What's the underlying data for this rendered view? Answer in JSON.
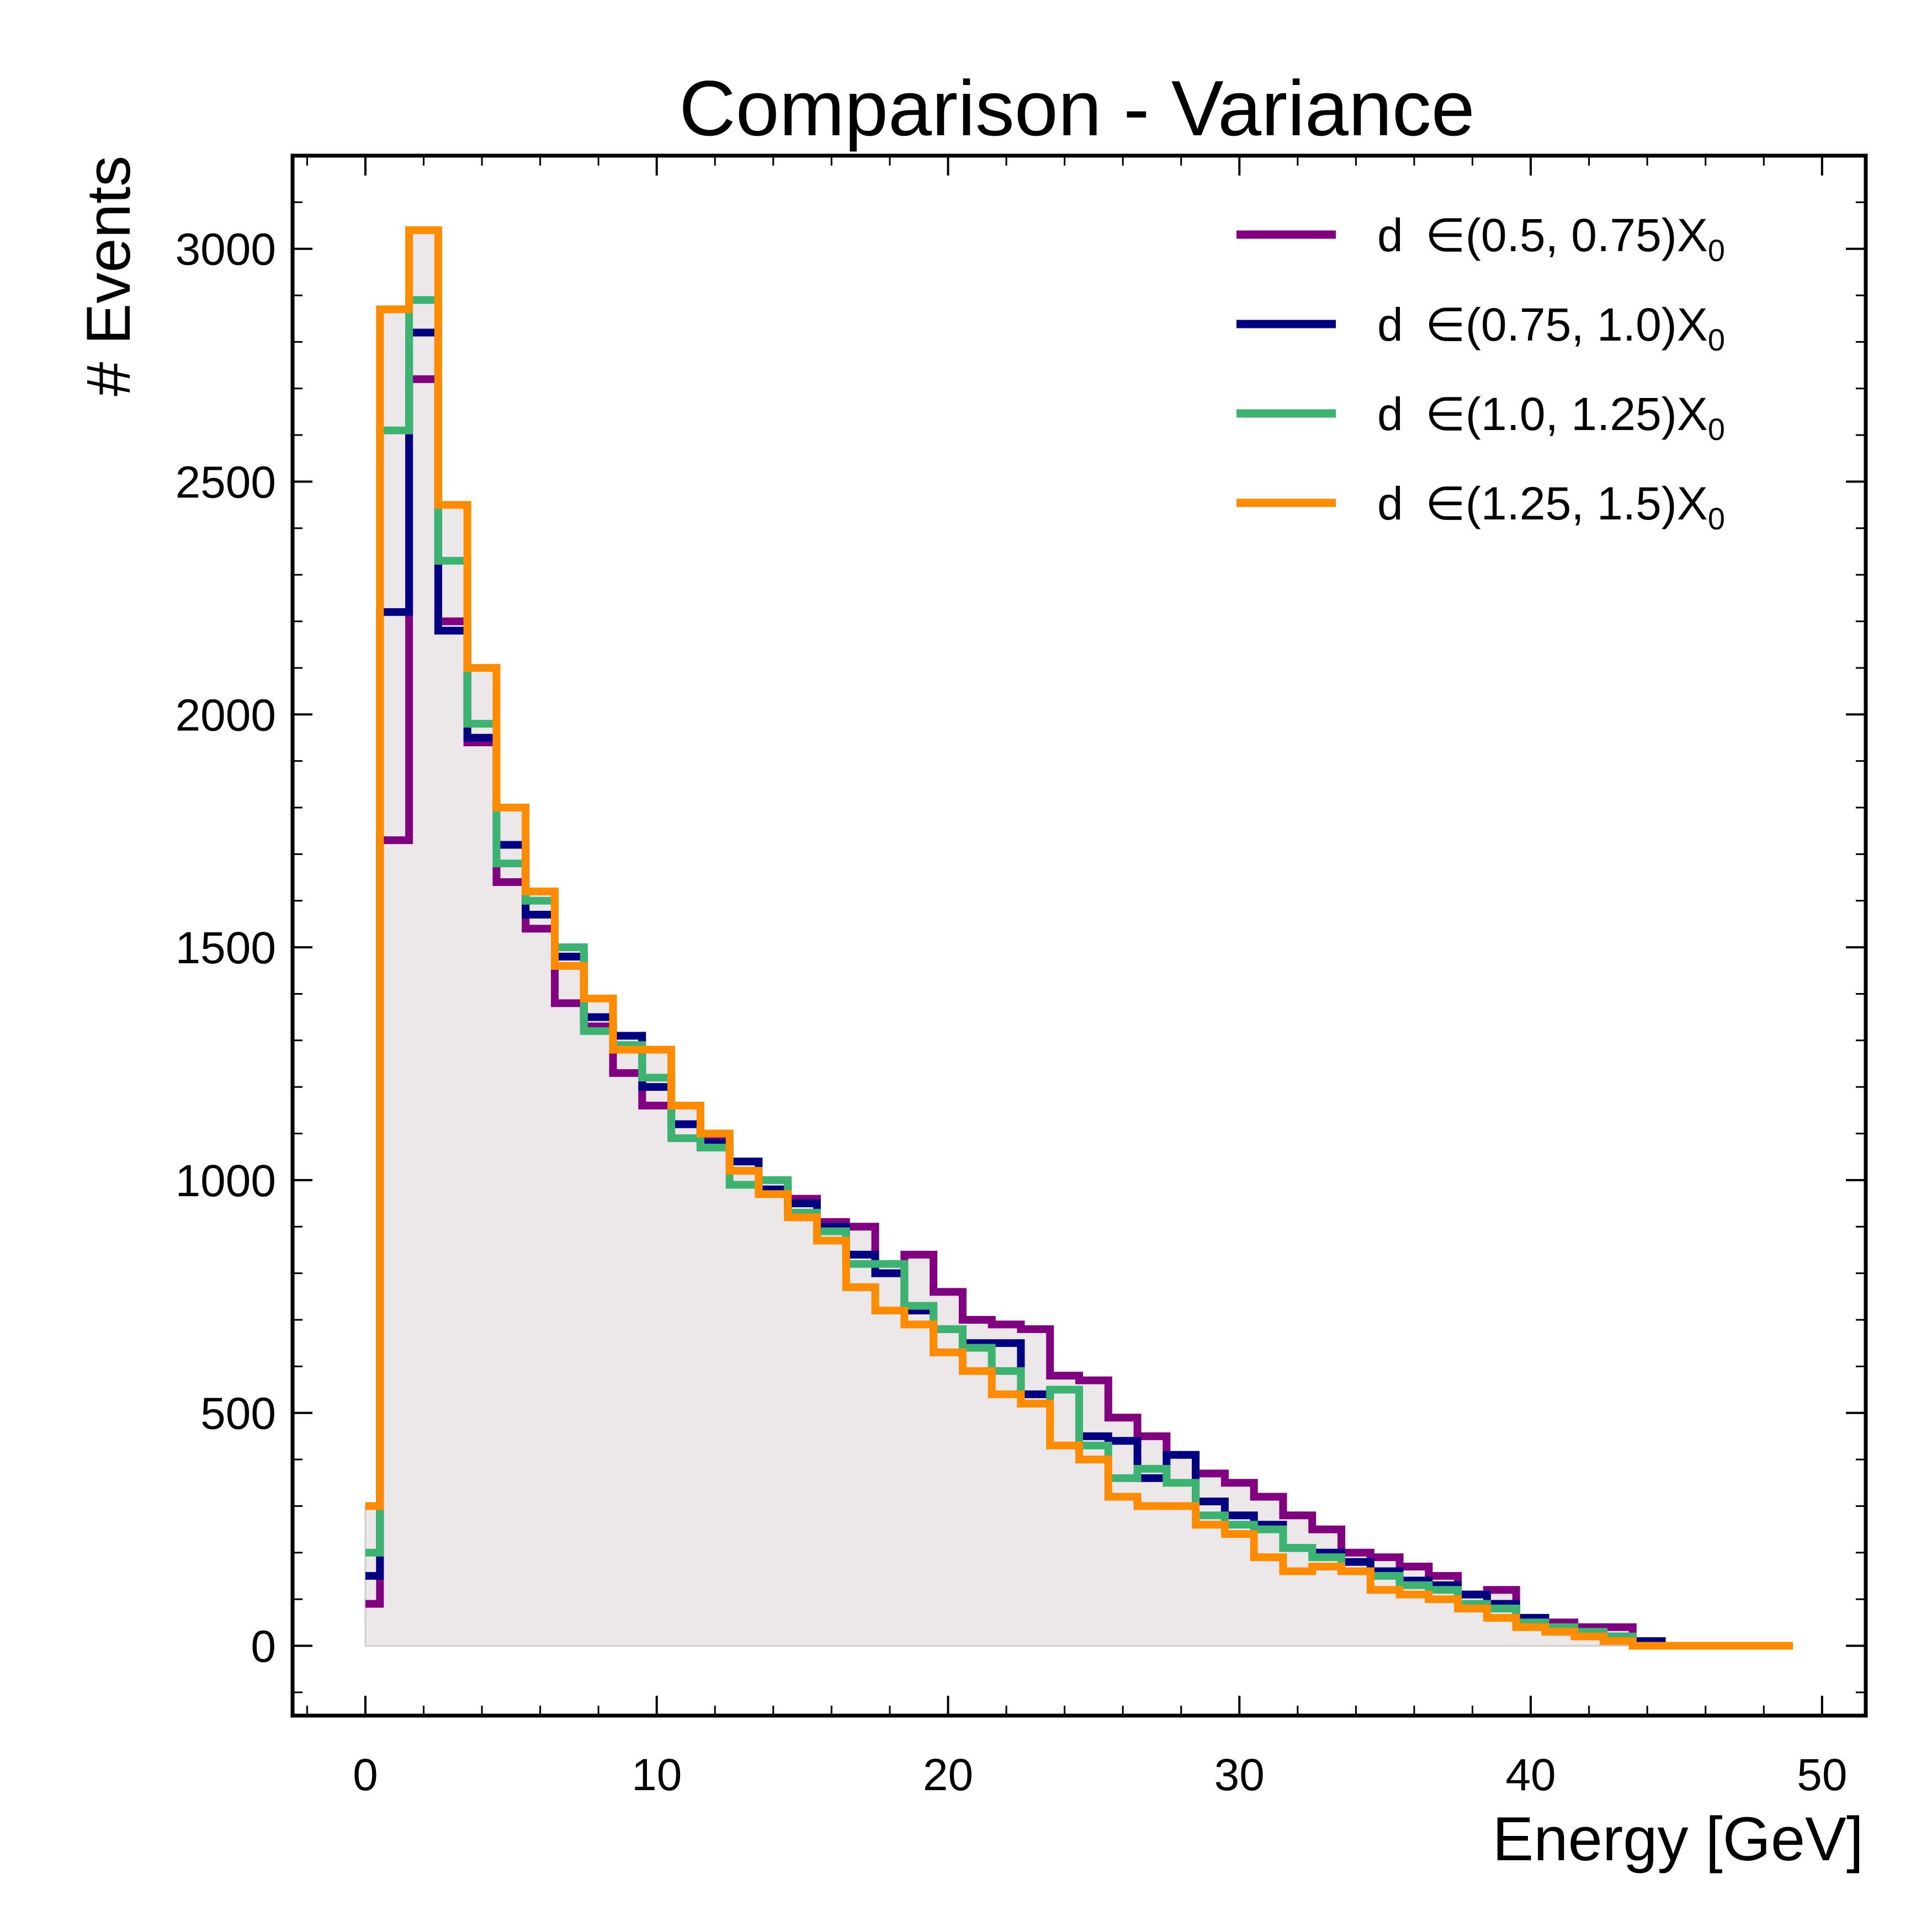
{
  "chart_data": {
    "type": "histogram-step",
    "title": "Comparison - Variance",
    "xlabel": "Energy [GeV]",
    "ylabel": "# Events",
    "xlim": [
      -2.5,
      51.5
    ],
    "ylim": [
      -150,
      3200
    ],
    "xticks": [
      0,
      10,
      20,
      30,
      40,
      50
    ],
    "xtick_labels": [
      "0",
      "10",
      "20",
      "30",
      "40",
      "50"
    ],
    "yticks": [
      0,
      500,
      1000,
      1500,
      2000,
      2500,
      3000
    ],
    "ytick_labels": [
      "0",
      "500",
      "1000",
      "1500",
      "2000",
      "2500",
      "3000"
    ],
    "legend_position": "top-right",
    "grid": false,
    "bin_edges": [
      0,
      0.5,
      1.5,
      2.5,
      3.5,
      4.5,
      5.5,
      6.5,
      7.5,
      8.5,
      9.5,
      10.5,
      11.5,
      12.5,
      13.5,
      14.5,
      15.5,
      16.5,
      17.5,
      18.5,
      19.5,
      20.5,
      21.5,
      22.5,
      23.5,
      24.5,
      25.5,
      26.5,
      27.5,
      28.5,
      29.5,
      30.5,
      31.5,
      32.5,
      33.5,
      34.5,
      35.5,
      36.5,
      37.5,
      38.5,
      39.5,
      40.5,
      41.5,
      42.5,
      43.5,
      44.5,
      45.5,
      46.5,
      47.5,
      48.5,
      49.0
    ],
    "series": [
      {
        "label_main": "d",
        "label_range": "∈(0.5, 0.75)X",
        "label_sub": "0",
        "color": "#800080",
        "values": [
          90,
          1730,
          2720,
          2200,
          1940,
          1640,
          1540,
          1380,
          1330,
          1230,
          1160,
          1120,
          1090,
          1020,
          980,
          960,
          910,
          900,
          800,
          840,
          760,
          700,
          690,
          680,
          580,
          570,
          490,
          450,
          410,
          370,
          350,
          320,
          280,
          250,
          200,
          190,
          170,
          150,
          110,
          120,
          60,
          50,
          40,
          40,
          10,
          0,
          0,
          0,
          0,
          0
        ]
      },
      {
        "label_main": "d",
        "label_range": "∈(0.75, 1.0)X",
        "label_sub": "0",
        "color": "#000080",
        "values": [
          150,
          2220,
          2820,
          2180,
          1950,
          1720,
          1570,
          1480,
          1350,
          1310,
          1200,
          1120,
          1080,
          1040,
          980,
          950,
          900,
          840,
          800,
          720,
          680,
          650,
          650,
          540,
          550,
          450,
          440,
          360,
          410,
          310,
          280,
          260,
          210,
          200,
          180,
          160,
          140,
          130,
          110,
          90,
          60,
          40,
          30,
          20,
          10,
          0,
          0,
          0,
          0,
          0
        ]
      },
      {
        "label_main": "d",
        "label_range": "∈(1.0, 1.25)X",
        "label_sub": "0",
        "color": "#3CB371",
        "values": [
          200,
          2610,
          2890,
          2330,
          1980,
          1680,
          1600,
          1500,
          1320,
          1290,
          1220,
          1090,
          1070,
          990,
          1000,
          930,
          890,
          820,
          820,
          730,
          680,
          640,
          590,
          520,
          550,
          430,
          360,
          380,
          350,
          280,
          260,
          250,
          210,
          190,
          160,
          150,
          130,
          120,
          90,
          80,
          50,
          40,
          30,
          20,
          0,
          0,
          0,
          0,
          0,
          0
        ]
      },
      {
        "label_main": "d",
        "label_range": "∈(1.25, 1.5)X",
        "label_sub": "0",
        "color": "#FF8C00",
        "values": [
          300,
          2870,
          3040,
          2450,
          2100,
          1800,
          1620,
          1460,
          1390,
          1280,
          1280,
          1160,
          1100,
          1020,
          970,
          920,
          870,
          770,
          720,
          690,
          630,
          590,
          540,
          520,
          430,
          400,
          320,
          300,
          300,
          260,
          240,
          190,
          160,
          170,
          160,
          120,
          110,
          100,
          80,
          60,
          40,
          30,
          20,
          10,
          0,
          0,
          0,
          0,
          0,
          0
        ]
      }
    ]
  }
}
